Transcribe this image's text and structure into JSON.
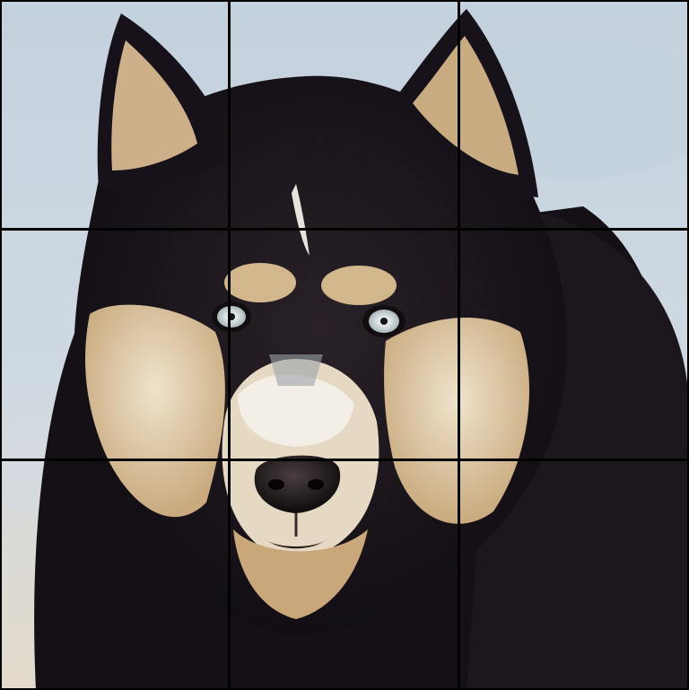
{
  "puzzle": {
    "rows": 3,
    "cols": 3,
    "subject_icon": "husky-dog-face-icon",
    "colors": {
      "background_sky": "#c9d5e0",
      "background_sand": "#e2d9c9",
      "fur_dark": "#16121a",
      "fur_tan": "#d8bf98",
      "fur_cream": "#efe6d6",
      "eye": "#c9d3d6",
      "nose": "#1c1717",
      "grid_line": "#000000"
    },
    "tiles": [
      {
        "id": "r1c1"
      },
      {
        "id": "r1c2"
      },
      {
        "id": "r1c3"
      },
      {
        "id": "r2c1"
      },
      {
        "id": "r2c2"
      },
      {
        "id": "r2c3"
      },
      {
        "id": "r3c1"
      },
      {
        "id": "r3c2"
      },
      {
        "id": "r3c3"
      }
    ]
  }
}
